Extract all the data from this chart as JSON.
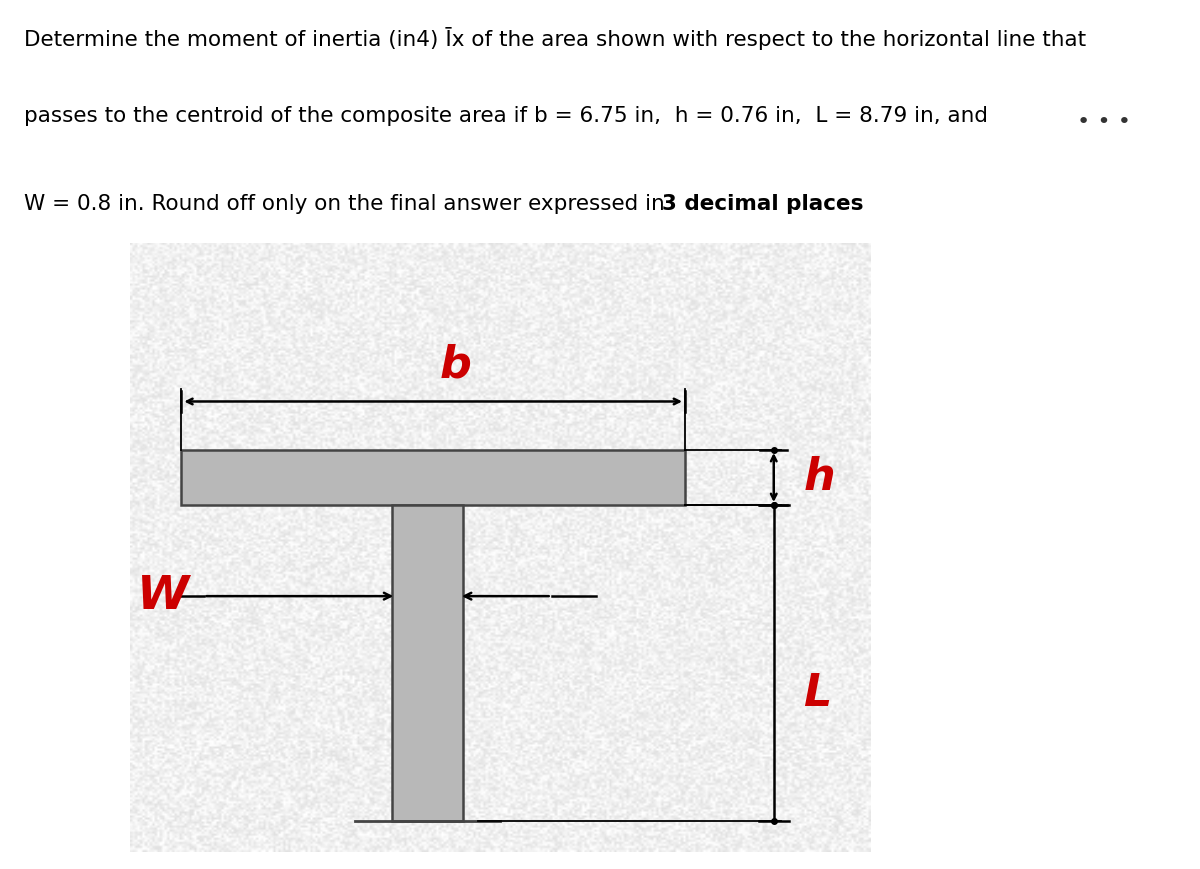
{
  "title_line1": "Determine the moment of inertia (in4) Īx of the area shown with respect to the horizontal line that",
  "title_line2": "passes to the centroid of the composite area if b = 6.75 in,  h = 0.76 in,  L = 8.79 in, and",
  "title_line3_normal": "W = 0.8 in. Round off only on the final answer expressed in ",
  "title_line3_bold": "3 decimal places",
  "title_line3_end": ".",
  "bg_color": "#ffffff",
  "diagram_outer_bg": "#e8e8e8",
  "diagram_inner_bg_light": "#f0f0f0",
  "shape_color": "#b8b8b8",
  "shape_edge": "#444444",
  "label_color": "#cc0000",
  "arrow_color": "#111111",
  "dots_color": "#333333",
  "text_fontsize": 15.5,
  "label_fontsize": 32
}
